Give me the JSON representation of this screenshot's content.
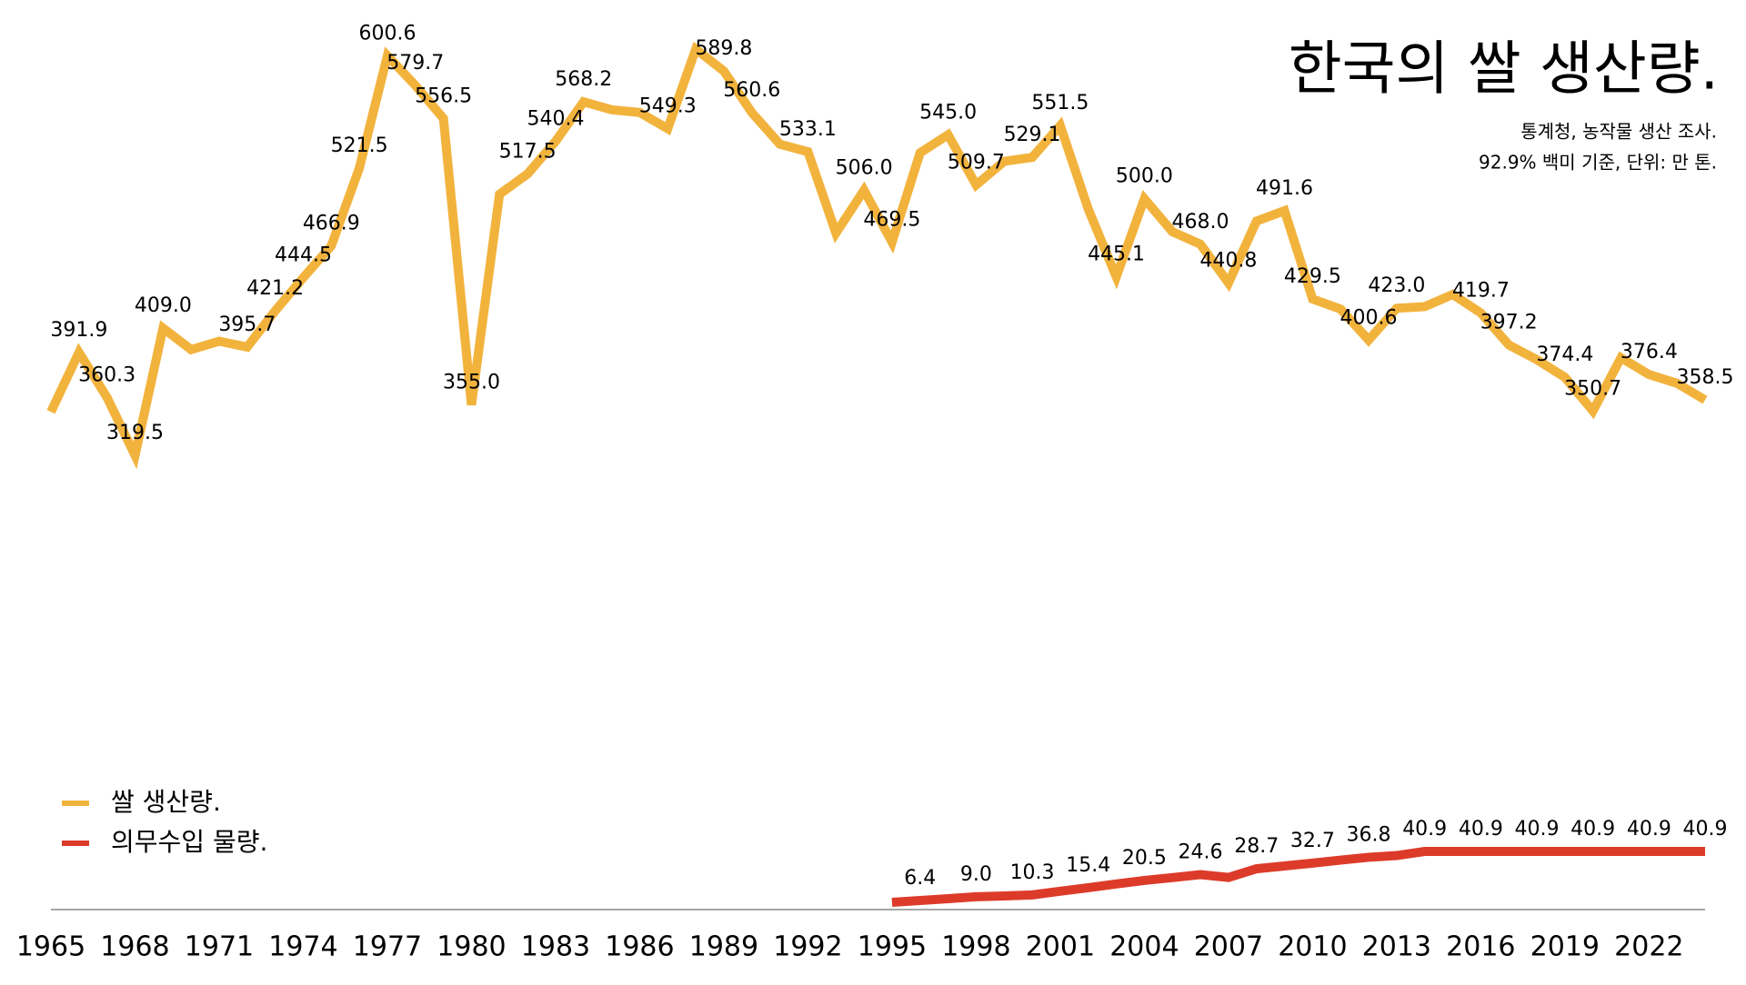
{
  "chart_data": {
    "type": "line",
    "title": "한국의 쌀 생산량.",
    "subtitle": [
      "통계청, 농작물 생산 조사.",
      "92.9% 백미 기준, 단위: 만 톤."
    ],
    "x": [
      1965,
      1966,
      1967,
      1968,
      1969,
      1970,
      1971,
      1972,
      1973,
      1974,
      1975,
      1976,
      1977,
      1978,
      1979,
      1980,
      1981,
      1982,
      1983,
      1984,
      1985,
      1986,
      1987,
      1988,
      1989,
      1990,
      1991,
      1992,
      1993,
      1994,
      1995,
      1996,
      1997,
      1998,
      1999,
      2000,
      2001,
      2002,
      2003,
      2004,
      2005,
      2006,
      2007,
      2008,
      2009,
      2010,
      2011,
      2012,
      2013,
      2014,
      2015,
      2016,
      2017,
      2018,
      2019,
      2020,
      2021,
      2022,
      2023,
      2024
    ],
    "xlim": [
      1965,
      2024
    ],
    "xticks": [
      1965,
      1968,
      1971,
      1974,
      1977,
      1980,
      1983,
      1986,
      1989,
      1992,
      1995,
      1998,
      2001,
      2004,
      2007,
      2010,
      2013,
      2016,
      2019,
      2022
    ],
    "ylim": [
      0,
      620
    ],
    "legend": "bottom-left",
    "series": [
      {
        "name": "쌀 생산량.",
        "color": "#f2b33d",
        "values": [
          350.1,
          391.9,
          360.3,
          319.5,
          409.0,
          393.9,
          399.8,
          395.7,
          421.2,
          444.5,
          466.9,
          521.5,
          600.6,
          579.7,
          556.5,
          355.0,
          503.2,
          517.5,
          540.4,
          568.2,
          562.6,
          560.7,
          549.3,
          605.3,
          589.8,
          560.6,
          538.4,
          533.1,
          475.9,
          506.0,
          469.5,
          532.3,
          545.0,
          509.7,
          526.3,
          529.1,
          551.5,
          492.7,
          445.1,
          500.0,
          476.8,
          468.0,
          440.8,
          484.3,
          491.6,
          429.5,
          422.4,
          400.6,
          423.0,
          424.1,
          432.7,
          419.7,
          397.2,
          386.8,
          374.4,
          350.7,
          388.2,
          376.4,
          370.2,
          358.5
        ],
        "value_labels": [
          null,
          "391.9",
          "360.3",
          "319.5",
          "409.0",
          null,
          null,
          "395.7",
          "421.2",
          "444.5",
          "466.9",
          "521.5",
          "600.6",
          "579.7",
          "556.5",
          "355.0",
          null,
          "517.5",
          "540.4",
          "568.2",
          null,
          null,
          "549.3",
          null,
          "589.8",
          "560.6",
          null,
          "533.1",
          null,
          "506.0",
          "469.5",
          null,
          "545.0",
          "509.7",
          null,
          "529.1",
          "551.5",
          null,
          "445.1",
          "500.0",
          null,
          "468.0",
          "440.8",
          null,
          "491.6",
          "429.5",
          null,
          "400.6",
          "423.0",
          null,
          null,
          "419.7",
          "397.2",
          null,
          "374.4",
          "350.7",
          null,
          "376.4",
          null,
          "358.5"
        ]
      },
      {
        "name": "의무수입 물량.",
        "color": "#dd3b2a",
        "values": [
          null,
          null,
          null,
          null,
          null,
          null,
          null,
          null,
          null,
          null,
          null,
          null,
          null,
          null,
          null,
          null,
          null,
          null,
          null,
          null,
          null,
          null,
          null,
          null,
          null,
          null,
          null,
          null,
          null,
          null,
          5.1,
          6.4,
          7.7,
          9.0,
          9.6,
          10.3,
          12.9,
          15.4,
          18.0,
          20.5,
          22.5,
          24.6,
          22.6,
          28.7,
          30.7,
          32.7,
          34.8,
          36.8,
          38.0,
          40.9,
          40.9,
          40.9,
          40.9,
          40.9,
          40.9,
          40.9,
          40.9,
          40.9,
          40.9,
          40.9
        ],
        "value_labels": [
          null,
          null,
          null,
          null,
          null,
          null,
          null,
          null,
          null,
          null,
          null,
          null,
          null,
          null,
          null,
          null,
          null,
          null,
          null,
          null,
          null,
          null,
          null,
          null,
          null,
          null,
          null,
          null,
          null,
          null,
          null,
          "6.4",
          null,
          "9.0",
          null,
          "10.3",
          null,
          "15.4",
          null,
          "20.5",
          null,
          "24.6",
          null,
          "28.7",
          null,
          "32.7",
          null,
          "36.8",
          null,
          "40.9",
          null,
          "40.9",
          null,
          "40.9",
          null,
          "40.9",
          null,
          "40.9",
          null,
          "40.9"
        ]
      }
    ]
  }
}
